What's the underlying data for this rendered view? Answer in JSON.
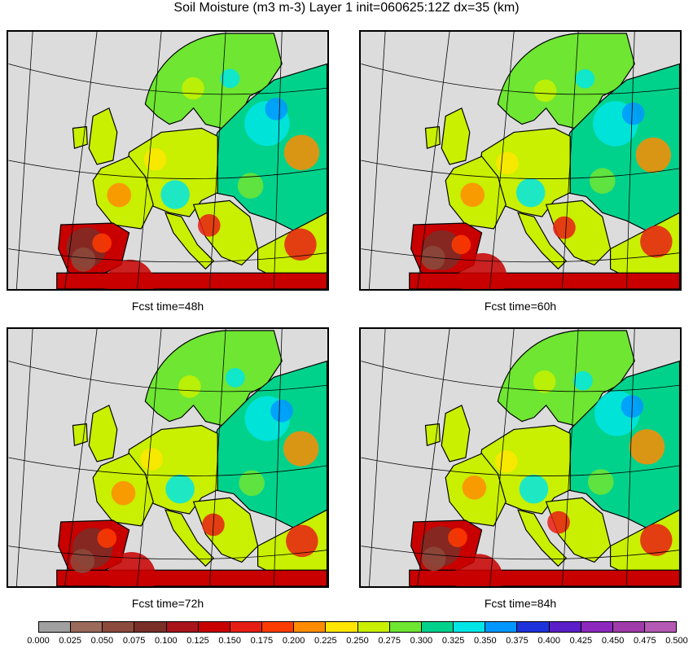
{
  "title": "Soil Moisture (m3 m-3) Layer 1 init=060625:12Z dx=35 (km)",
  "panels": [
    {
      "caption": "Fcst time=48h"
    },
    {
      "caption": "Fcst time=60h"
    },
    {
      "caption": "Fcst time=72h"
    },
    {
      "caption": "Fcst time=84h"
    }
  ],
  "legend": {
    "ticks": [
      "0.000",
      "0.025",
      "0.050",
      "0.075",
      "0.100",
      "0.125",
      "0.150",
      "0.175",
      "0.200",
      "0.225",
      "0.250",
      "0.275",
      "0.300",
      "0.325",
      "0.350",
      "0.375",
      "0.400",
      "0.425",
      "0.450",
      "0.475",
      "0.500"
    ],
    "colors": [
      "#a0a0a0",
      "#9a6a5a",
      "#8c4a3c",
      "#7a2e28",
      "#a8141a",
      "#c80000",
      "#e61e14",
      "#ff3c00",
      "#ff8c00",
      "#ffe600",
      "#c8f000",
      "#6ee632",
      "#00d28c",
      "#00e6e6",
      "#0096ff",
      "#1e32dc",
      "#5a1ec8",
      "#8c28be",
      "#a03caa",
      "#b45ab4"
    ]
  },
  "colors": {
    "ocean": "#dcdcdc",
    "graticule": "#000000"
  }
}
